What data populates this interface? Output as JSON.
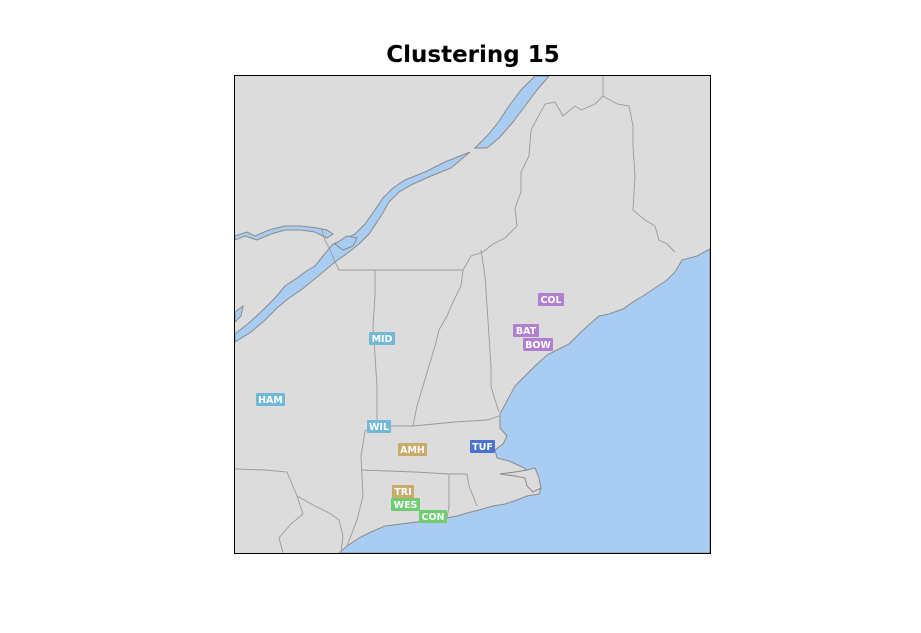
{
  "title": "Clustering 15",
  "colors": {
    "land": "#dcdcdc",
    "water": "#a9cdf2",
    "border": "#9a9a9a",
    "coast": "#8a8a8a"
  },
  "markers": [
    {
      "code": "COL",
      "color": "#b07fd0"
    },
    {
      "code": "BAT",
      "color": "#b07fd0"
    },
    {
      "code": "BOW",
      "color": "#b07fd0"
    },
    {
      "code": "MID",
      "color": "#72b8d8"
    },
    {
      "code": "HAM",
      "color": "#72b8d8"
    },
    {
      "code": "WIL",
      "color": "#72b8d8"
    },
    {
      "code": "AMH",
      "color": "#c9ab6a"
    },
    {
      "code": "TUF",
      "color": "#4a72d0"
    },
    {
      "code": "TRI",
      "color": "#c9ab6a"
    },
    {
      "code": "WES",
      "color": "#6fcc6f"
    },
    {
      "code": "CON",
      "color": "#6fcc6f"
    }
  ]
}
